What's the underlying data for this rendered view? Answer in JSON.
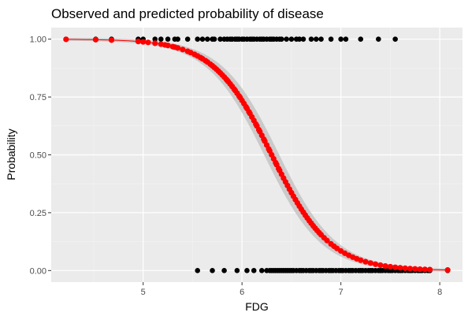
{
  "chart_data": {
    "type": "scatter",
    "title": "Observed and predicted probability of disease",
    "xlabel": "FDG",
    "ylabel": "Probability",
    "xlim": [
      4.07,
      8.23
    ],
    "ylim": [
      -0.05,
      1.05
    ],
    "x_ticks": [
      5,
      6,
      7,
      8
    ],
    "x_tick_labels": [
      "5",
      "6",
      "7",
      "8"
    ],
    "y_ticks": [
      0,
      0.25,
      0.5,
      0.75,
      1
    ],
    "y_tick_labels": [
      "0.00",
      "0.25",
      "0.50",
      "0.75",
      "1.00"
    ],
    "grid": true,
    "legend": "none",
    "logistic_model": {
      "midpoint": 6.3,
      "slope": 3.4
    },
    "confidence_band": {
      "color": "#c6c6c6",
      "half_width_max": 0.06
    },
    "series": [
      {
        "role": "observed",
        "color": "#000000",
        "points_y1": [
          4.22,
          4.52,
          4.68,
          4.95,
          5.0,
          5.12,
          5.18,
          5.25,
          5.32,
          5.35,
          5.45,
          5.55,
          5.6,
          5.65,
          5.7,
          5.72,
          5.78,
          5.82,
          5.85,
          5.88,
          5.9,
          5.93,
          5.95,
          5.97,
          6.0,
          6.02,
          6.05,
          6.08,
          6.1,
          6.12,
          6.15,
          6.18,
          6.2,
          6.22,
          6.25,
          6.28,
          6.3,
          6.32,
          6.35,
          6.38,
          6.4,
          6.45,
          6.5,
          6.55,
          6.58,
          6.62,
          6.7,
          6.75,
          6.8,
          6.9,
          7.0,
          7.05,
          7.2,
          7.38,
          7.55
        ],
        "points_y0": [
          5.55,
          5.7,
          5.82,
          5.95,
          6.05,
          6.12,
          6.2,
          6.25,
          6.28,
          6.3,
          6.32,
          6.34,
          6.36,
          6.38,
          6.4,
          6.42,
          6.44,
          6.46,
          6.48,
          6.5,
          6.52,
          6.55,
          6.58,
          6.6,
          6.62,
          6.65,
          6.68,
          6.7,
          6.72,
          6.75,
          6.78,
          6.8,
          6.82,
          6.85,
          6.88,
          6.9,
          6.92,
          6.95,
          6.98,
          7.0,
          7.02,
          7.05,
          7.08,
          7.1,
          7.12,
          7.15,
          7.18,
          7.2,
          7.22,
          7.25,
          7.28,
          7.3,
          7.32,
          7.35,
          7.38,
          7.4,
          7.42,
          7.45,
          7.48,
          7.5,
          7.52,
          7.55,
          7.58,
          7.6,
          7.62,
          7.65,
          7.68,
          7.7,
          7.72,
          7.75,
          7.78,
          7.8,
          7.82,
          7.85,
          7.88,
          7.9,
          8.08
        ]
      },
      {
        "role": "predicted",
        "color": "#ff0000",
        "points_x": [
          4.22,
          4.52,
          4.68,
          4.95,
          5.0,
          5.05,
          5.12,
          5.18,
          5.22,
          5.25,
          5.3,
          5.32,
          5.35,
          5.4,
          5.45,
          5.48,
          5.52,
          5.55,
          5.58,
          5.6,
          5.63,
          5.65,
          5.68,
          5.7,
          5.72,
          5.74,
          5.76,
          5.78,
          5.8,
          5.82,
          5.84,
          5.85,
          5.86,
          5.88,
          5.9,
          5.92,
          5.93,
          5.95,
          5.97,
          5.98,
          6.0,
          6.02,
          6.04,
          6.05,
          6.07,
          6.08,
          6.1,
          6.12,
          6.14,
          6.15,
          6.17,
          6.18,
          6.2,
          6.22,
          6.23,
          6.25,
          6.27,
          6.28,
          6.3,
          6.32,
          6.34,
          6.35,
          6.37,
          6.38,
          6.4,
          6.42,
          6.44,
          6.46,
          6.48,
          6.5,
          6.52,
          6.54,
          6.56,
          6.58,
          6.6,
          6.62,
          6.64,
          6.66,
          6.68,
          6.7,
          6.72,
          6.74,
          6.76,
          6.78,
          6.8,
          6.83,
          6.86,
          6.9,
          6.93,
          6.96,
          7.0,
          7.04,
          7.08,
          7.12,
          7.16,
          7.2,
          7.25,
          7.3,
          7.35,
          7.4,
          7.45,
          7.5,
          7.55,
          7.6,
          7.65,
          7.7,
          7.75,
          7.8,
          7.85,
          7.9,
          8.08
        ]
      }
    ]
  }
}
